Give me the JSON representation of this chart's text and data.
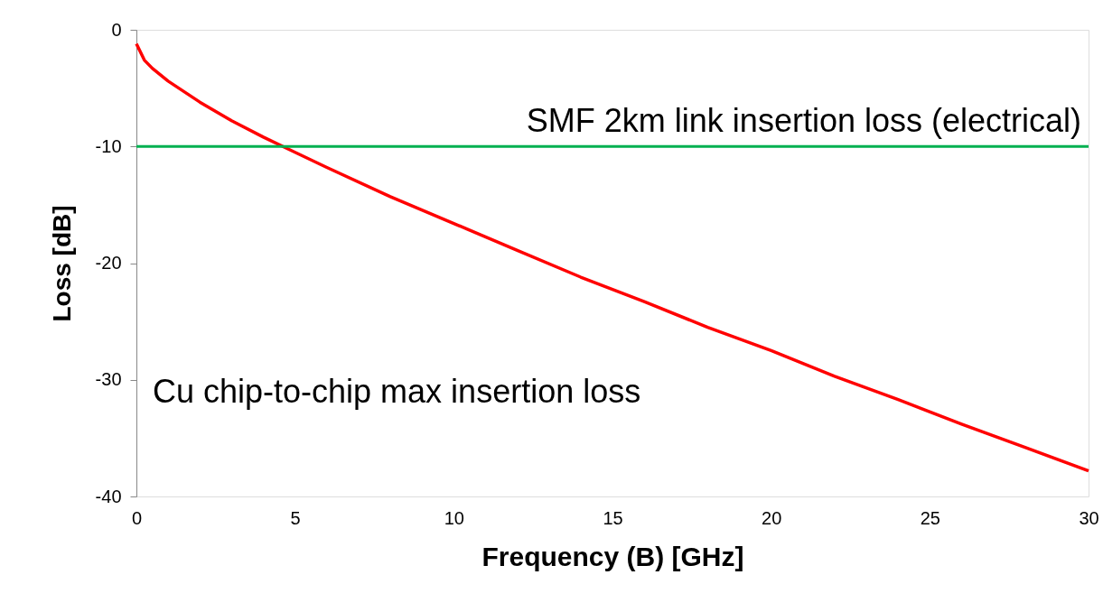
{
  "chart_data": {
    "type": "line",
    "xlabel": "Frequency (B) [GHz]",
    "ylabel": "Loss [dB]",
    "x": [
      0,
      0.25,
      0.5,
      1,
      2,
      3,
      4,
      5,
      6,
      8,
      10,
      12,
      14,
      16,
      18,
      20,
      22,
      24,
      26,
      28,
      30
    ],
    "series": [
      {
        "color": "#ff0000",
        "values": [
          -1.2,
          -2.6,
          -3.3,
          -4.4,
          -6.2,
          -7.8,
          -9.2,
          -10.5,
          -11.8,
          -14.3,
          -16.6,
          -18.9,
          -21.2,
          -23.3,
          -25.5,
          -27.5,
          -29.7,
          -31.7,
          -33.8,
          -35.8,
          -37.8
        ]
      }
    ],
    "xlim": [
      0,
      30
    ],
    "xticks": [
      0,
      5,
      10,
      15,
      20,
      25,
      30
    ],
    "ylim": [
      -40,
      0
    ],
    "yticks": [
      -40,
      -30,
      -20,
      -10,
      0
    ],
    "ref_lines": [
      {
        "axis": "y",
        "value": -10,
        "label": "SMF 2km link insertion loss (electrical)",
        "color": "#00b050"
      }
    ],
    "annotations": [
      "Cu chip-to-chip max insertion loss"
    ],
    "grid": false,
    "marker": "none",
    "line_style": "solid"
  }
}
